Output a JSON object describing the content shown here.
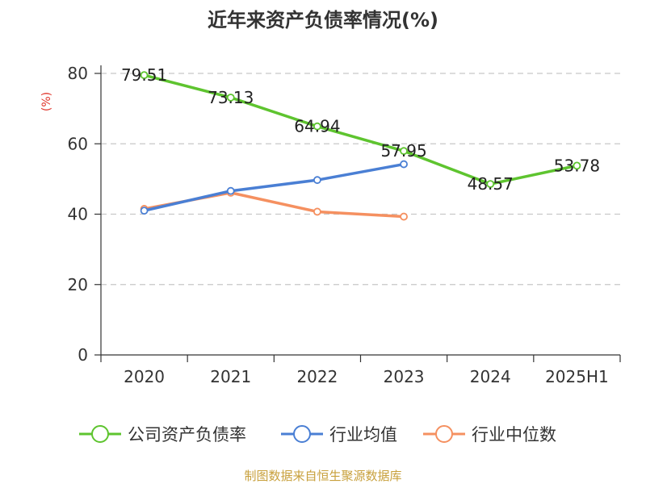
{
  "chart_data": {
    "type": "line",
    "title": "近年来资产负债率情况(%)",
    "ylabel": "(%)",
    "categories": [
      "2020",
      "2021",
      "2022",
      "2023",
      "2024",
      "2025H1"
    ],
    "ylim": [
      0,
      80
    ],
    "yticks": [
      0,
      20,
      40,
      60,
      80
    ],
    "grid": true,
    "legend_position": "bottom",
    "series": [
      {
        "name": "公司资产负债率",
        "color": "#5ec42f",
        "values": [
          79.51,
          73.13,
          64.94,
          57.95,
          48.57,
          53.78
        ],
        "labels": [
          "79.51",
          "73.13",
          "64.94",
          "57.95",
          "48.57",
          "53.78"
        ]
      },
      {
        "name": "行业均值",
        "color": "#4a7fd4",
        "values": [
          41.0,
          46.6,
          49.7,
          54.2,
          null,
          null
        ]
      },
      {
        "name": "行业中位数",
        "color": "#f59060",
        "values": [
          41.5,
          46.1,
          40.7,
          39.3,
          null,
          null
        ]
      }
    ],
    "source": "制图数据来自恒生聚源数据库"
  }
}
